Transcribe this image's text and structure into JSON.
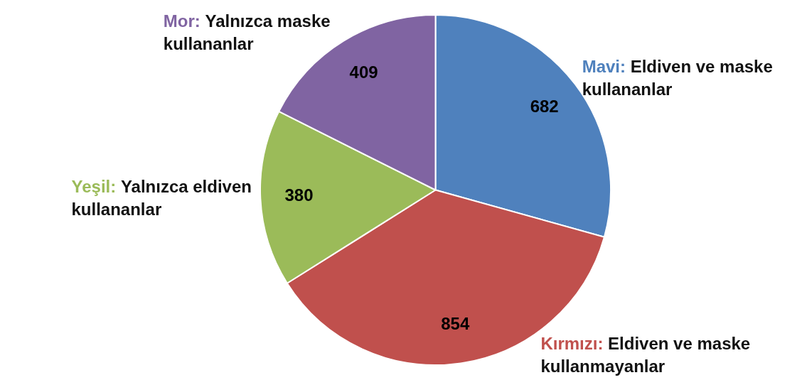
{
  "chart_data": {
    "type": "pie",
    "categories": [
      "Mavi: Eldiven ve maske kullananlar",
      "Kırmızı: Eldiven ve maske kullanmayanlar",
      "Yeşil: Yalnızca eldiven kullananlar",
      "Mor: Yalnızca maske kullananlar"
    ],
    "values": [
      682,
      854,
      380,
      409
    ],
    "colors": [
      "#4f81bd",
      "#c0504d",
      "#9bbb59",
      "#8064a2"
    ],
    "data_labels": true,
    "legend": false
  }
}
